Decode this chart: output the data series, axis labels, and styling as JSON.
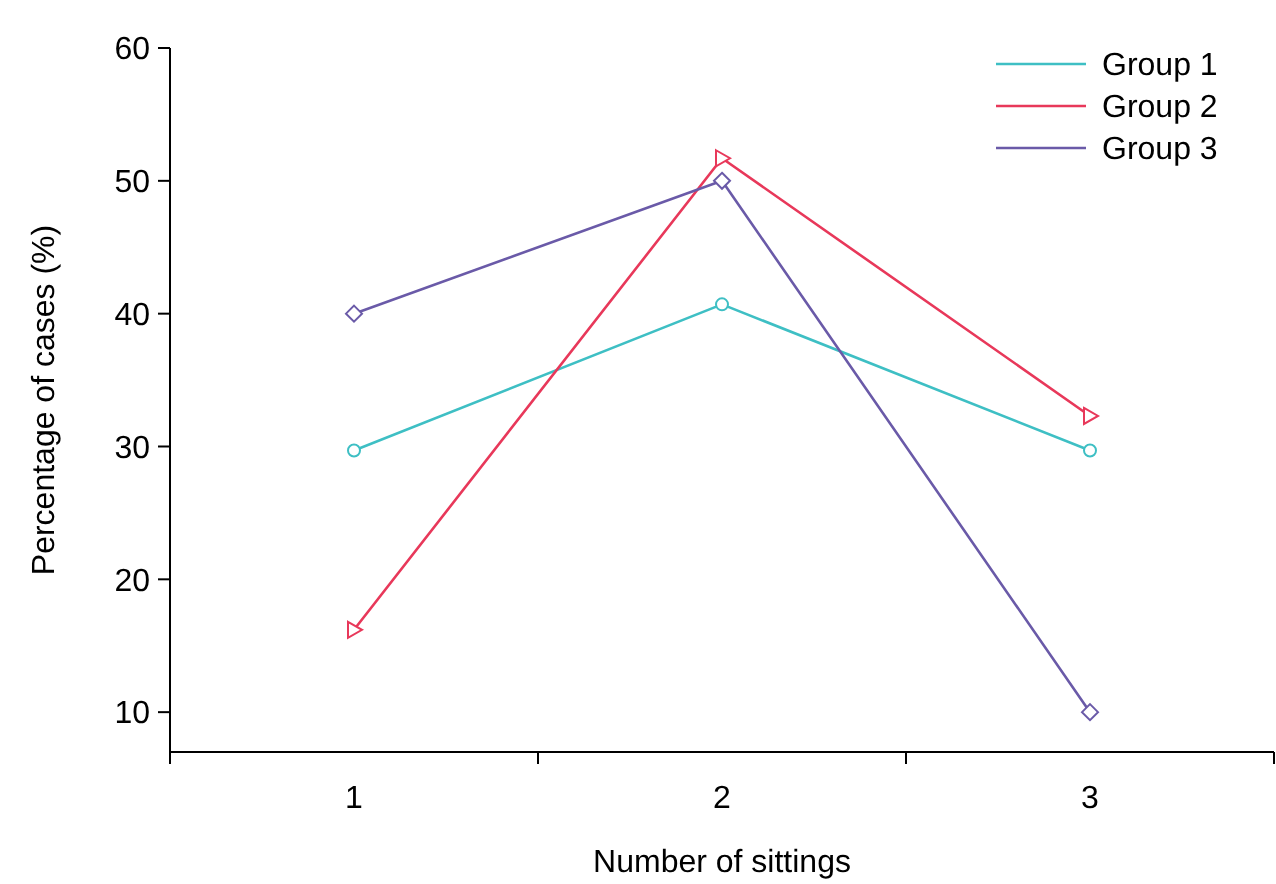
{
  "chart_data": {
    "type": "line",
    "xlabel": "Number of sittings",
    "ylabel": "Percentage of cases (%)",
    "categories": [
      "1",
      "2",
      "3"
    ],
    "ylim": [
      7,
      60
    ],
    "yticks": [
      10,
      20,
      30,
      40,
      50,
      60
    ],
    "grid": false,
    "legend": "top right",
    "series": [
      {
        "name": "Group 1",
        "color": "#3ebfc4",
        "marker": "circle",
        "values": [
          29.7,
          40.7,
          29.7
        ]
      },
      {
        "name": "Group 2",
        "color": "#e8385a",
        "marker": "triangle",
        "values": [
          16.2,
          51.7,
          32.3
        ]
      },
      {
        "name": "Group 3",
        "color": "#6a5aa8",
        "marker": "diamond",
        "values": [
          40,
          50,
          10
        ]
      }
    ]
  }
}
